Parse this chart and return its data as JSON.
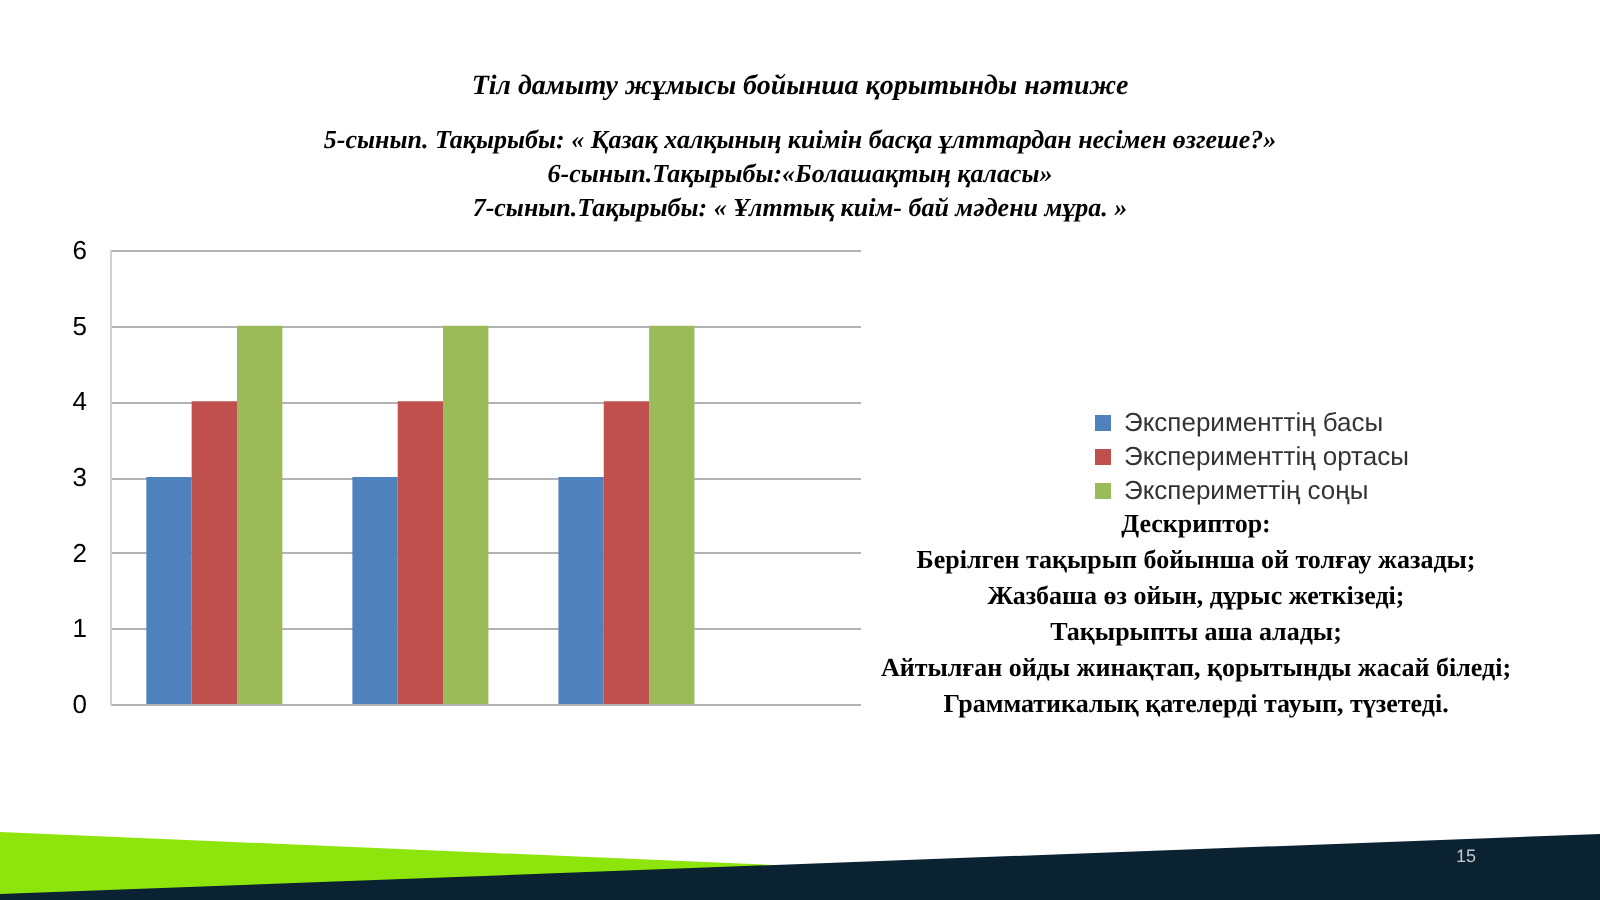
{
  "chart_data": {
    "type": "bar",
    "title": "Тіл дамыту жұмысы бойынша қорытынды нәтиже",
    "subtitle": "5-сынып. Тақырыбы: « Қазақ халқының киімін басқа ұлттардан несімен өзгеше?»\n6-сынып.Тақырыбы:«Болашақтың қаласы»\n7-сынып.Тақырыбы: « Ұлттық киім- бай мәдени мұра. »",
    "categories": [
      null,
      null,
      null
    ],
    "series": [
      {
        "name": "Эксперименттің басы",
        "color": "#4f81bd",
        "values": [
          3,
          3,
          3
        ]
      },
      {
        "name": "Эксперименттің ортасы",
        "color": "#c0504d",
        "values": [
          4,
          4,
          4
        ]
      },
      {
        "name": "Экспериметтің соңы",
        "color": "#9bbb59",
        "values": [
          5,
          5,
          5
        ]
      }
    ],
    "ylim": [
      0,
      6
    ],
    "yticks": [
      0,
      1,
      2,
      3,
      4,
      5,
      6
    ],
    "grid": "y",
    "legend": "right",
    "tick_labels": "y",
    "annotations": [
      "Дескриптор:",
      "Берілген тақырып бойынша ой толғау жазады;",
      "Жазбаша өз ойын, дұрыс жеткізеді;",
      "Тақырыпты аша алады;",
      "Айтылған ойды жинақтап, қорытынды жасай біледі;",
      "Грамматикалық қателерді тауып, түзетеді.",
      "15"
    ]
  }
}
